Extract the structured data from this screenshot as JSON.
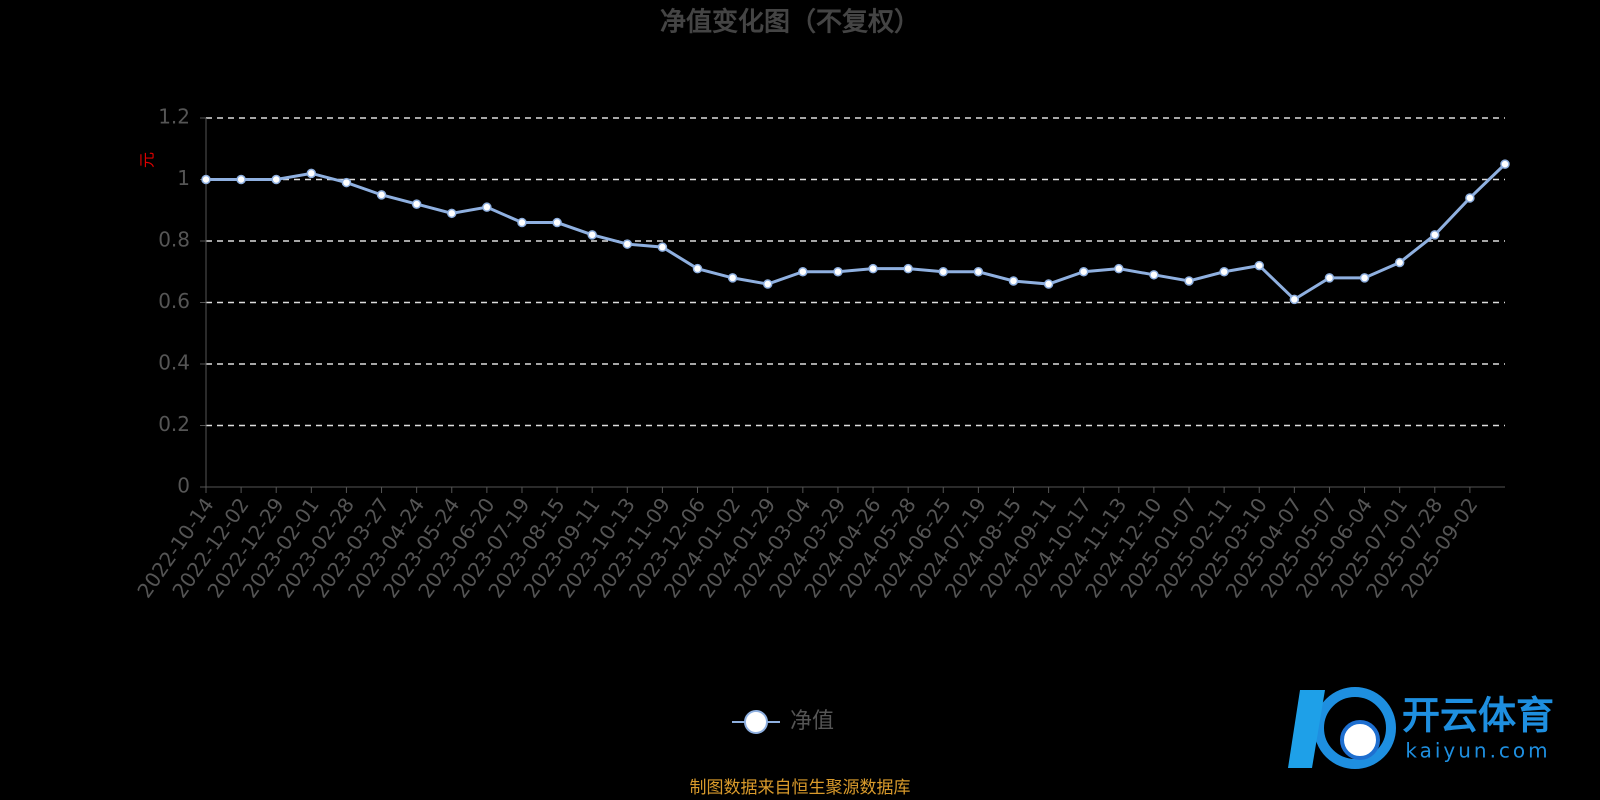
{
  "chart_data": {
    "type": "line",
    "title": "净值变化图（不复权）",
    "y_label": "元",
    "categories": [
      "2022-10-14",
      "2022-12-02",
      "2022-12-29",
      "2023-02-01",
      "2023-02-28",
      "2023-03-27",
      "2023-04-24",
      "2023-05-24",
      "2023-06-20",
      "2023-07-19",
      "2023-08-15",
      "2023-09-11",
      "2023-10-13",
      "2023-11-09",
      "2023-12-06",
      "2024-01-02",
      "2024-01-29",
      "2024-03-04",
      "2024-03-29",
      "2024-04-26",
      "2024-05-28",
      "2024-06-25",
      "2024-07-19",
      "2024-08-15",
      "2024-09-11",
      "2024-10-17",
      "2024-11-13",
      "2024-12-10",
      "2025-01-07",
      "2025-02-11",
      "2025-03-10",
      "2025-04-07",
      "2025-05-07",
      "2025-06-04",
      "2025-07-01",
      "2025-07-28",
      "2025-09-02",
      null
    ],
    "series": [
      {
        "name": "净值",
        "color": "#8fb0e0",
        "values": [
          1.0,
          1.0,
          1.0,
          1.02,
          0.99,
          0.95,
          0.92,
          0.89,
          0.91,
          0.86,
          0.86,
          0.82,
          0.79,
          0.78,
          0.71,
          0.68,
          0.66,
          0.7,
          0.7,
          0.71,
          0.71,
          0.7,
          0.7,
          0.67,
          0.66,
          0.7,
          0.71,
          0.69,
          0.67,
          0.7,
          0.72,
          0.61,
          0.68,
          0.68,
          0.73,
          0.82,
          0.94,
          1.05
        ]
      }
    ],
    "ylim": [
      0,
      1.2
    ],
    "yticks": [
      0,
      0.2,
      0.4,
      0.6,
      0.8,
      1,
      1.2
    ],
    "grid": true,
    "source": "制图数据来自恒生聚源数据库"
  },
  "watermark": {
    "name": "开云体育",
    "url": "kaiyun.com"
  }
}
